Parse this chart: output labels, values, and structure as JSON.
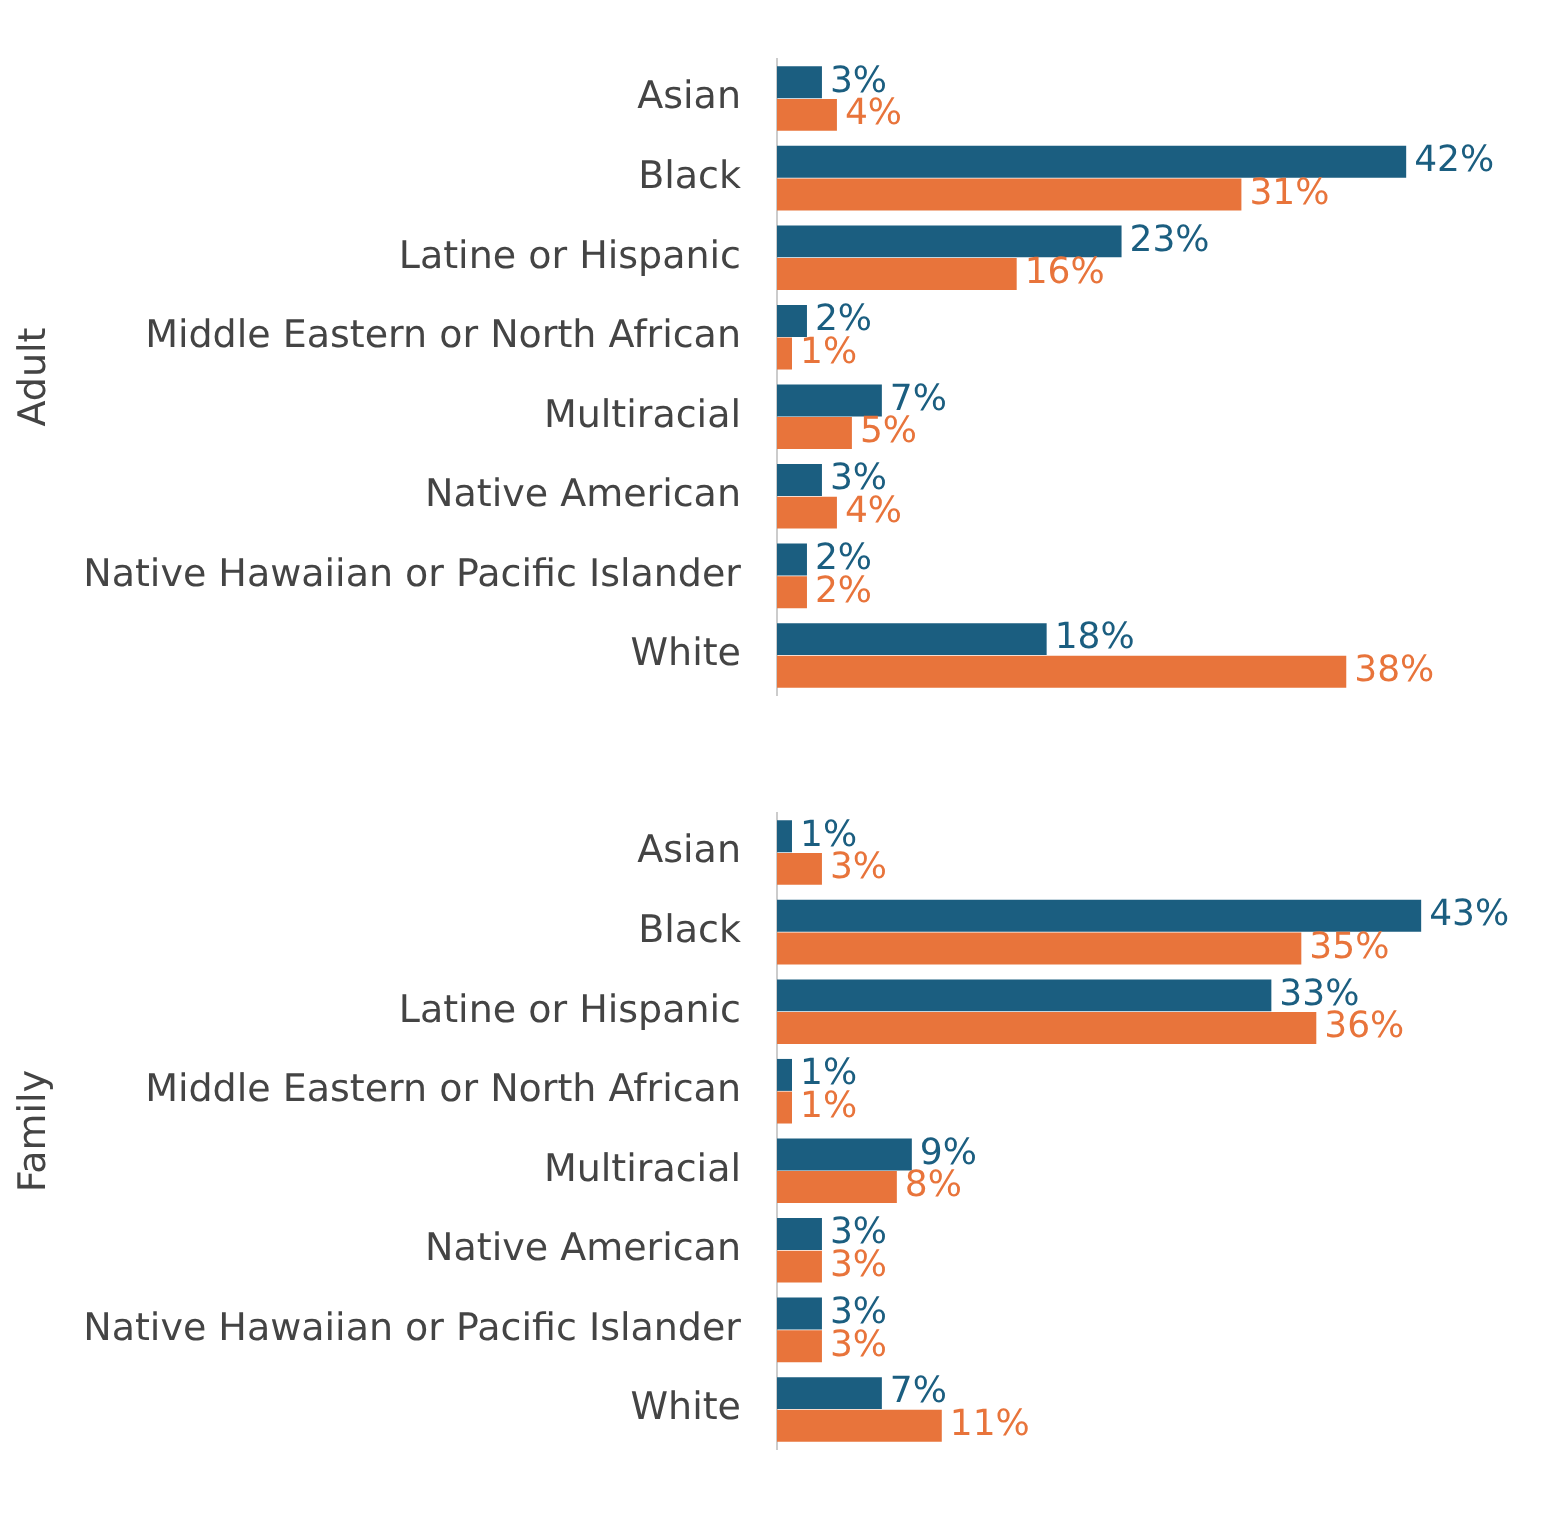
{
  "chart_data": [
    {
      "type": "bar",
      "orientation": "horizontal",
      "ylabel": "Adult",
      "categories": [
        "Asian",
        "Black",
        "Latine or Hispanic",
        "Middle Eastern or North African",
        "Multiracial",
        "Native American",
        "Native Hawaiian or Pacific Islander",
        "White"
      ],
      "series": [
        {
          "color": "#1b5e80",
          "values": [
            3,
            42,
            23,
            2,
            7,
            3,
            2,
            18
          ],
          "value_labels": [
            "3%",
            "42%",
            "23%",
            "2%",
            "7%",
            "3%",
            "2%",
            "18%"
          ]
        },
        {
          "color": "#e8743b",
          "values": [
            4,
            31,
            16,
            1,
            5,
            4,
            2,
            38
          ],
          "value_labels": [
            "4%",
            "31%",
            "16%",
            "1%",
            "5%",
            "4%",
            "2%",
            "38%"
          ]
        }
      ]
    },
    {
      "type": "bar",
      "orientation": "horizontal",
      "ylabel": "Family",
      "categories": [
        "Asian",
        "Black",
        "Latine or Hispanic",
        "Middle Eastern or North African",
        "Multiracial",
        "Native American",
        "Native Hawaiian or Pacific Islander",
        "White"
      ],
      "series": [
        {
          "color": "#1b5e80",
          "values": [
            1,
            43,
            33,
            1,
            9,
            3,
            3,
            7
          ],
          "value_labels": [
            "1%",
            "43%",
            "33%",
            "1%",
            "9%",
            "3%",
            "3%",
            "7%"
          ]
        },
        {
          "color": "#e8743b",
          "values": [
            3,
            35,
            36,
            1,
            8,
            3,
            3,
            11
          ],
          "value_labels": [
            "3%",
            "35%",
            "36%",
            "1%",
            "8%",
            "3%",
            "3%",
            "11%"
          ]
        }
      ]
    }
  ]
}
